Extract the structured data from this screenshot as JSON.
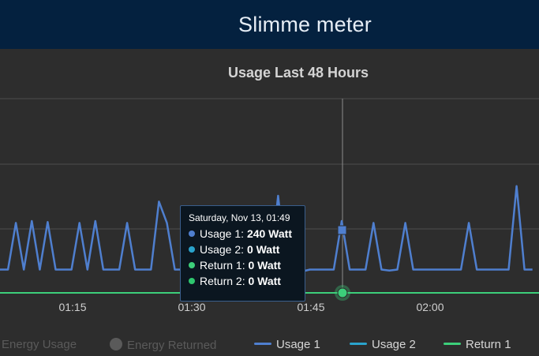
{
  "header": {
    "title": "Slimme meter"
  },
  "chart_data": {
    "type": "line",
    "title": "Usage Last 48 Hours",
    "x_ticks": [
      "01:15",
      "01:30",
      "01:45",
      "02:00"
    ],
    "y_unit": "Watt",
    "ylim": [
      0,
      1000
    ],
    "grid": true,
    "legend_position": "bottom",
    "series": [
      {
        "name": "Usage 1",
        "color": "#4f7fcf",
        "x_minutes": [
          0,
          1,
          2,
          3,
          4,
          5,
          6,
          7,
          8,
          9,
          10,
          11,
          12,
          13,
          14,
          15,
          16,
          17,
          18,
          19,
          20,
          21,
          22,
          23,
          24,
          25,
          26,
          27,
          28,
          29,
          30,
          31,
          32,
          33,
          34,
          35,
          36,
          37,
          38,
          39,
          40,
          41,
          42,
          43,
          44,
          45,
          46,
          47,
          48,
          49,
          50,
          51,
          52,
          53,
          54,
          55,
          56,
          57,
          58,
          59,
          60,
          61,
          62,
          63,
          64,
          65,
          66,
          67
        ],
        "values": [
          240,
          240,
          720,
          240,
          740,
          240,
          730,
          240,
          240,
          240,
          720,
          240,
          740,
          240,
          240,
          240,
          720,
          240,
          240,
          240,
          940,
          720,
          240,
          240,
          240,
          240,
          240,
          240,
          240,
          240,
          240,
          240,
          240,
          240,
          240,
          1000,
          240,
          240,
          220,
          240,
          240,
          240,
          240,
          740,
          240,
          240,
          240,
          720,
          240,
          230,
          240,
          720,
          240,
          240,
          240,
          240,
          240,
          240,
          240,
          720,
          240,
          240,
          240,
          240,
          240,
          1100,
          240,
          240
        ]
      },
      {
        "name": "Usage 2",
        "color": "#2aa3cc",
        "values": [
          0
        ]
      },
      {
        "name": "Return 1",
        "color": "#3ccf7a",
        "values": [
          0
        ]
      },
      {
        "name": "Return 2",
        "color": "#2ec76f",
        "values": [
          0
        ]
      }
    ]
  },
  "legend": [
    {
      "label": "Energy Usage",
      "visible": false
    },
    {
      "label": "Energy Returned",
      "visible": false
    },
    {
      "label": "Usage 1",
      "color": "#4f7fcf",
      "visible": true
    },
    {
      "label": "Usage 2",
      "color": "#2aa3cc",
      "visible": true
    },
    {
      "label": "Return 1",
      "color": "#3ccf7a",
      "visible": true
    }
  ],
  "tooltip": {
    "date": "Saturday, Nov 13, 01:49",
    "rows": [
      {
        "label": "Usage 1:",
        "value": "240 Watt",
        "color": "#4f7fcf"
      },
      {
        "label": "Usage 2:",
        "value": "0 Watt",
        "color": "#2aa3cc"
      },
      {
        "label": "Return 1:",
        "value": "0 Watt",
        "color": "#3ccf7a"
      },
      {
        "label": "Return 2:",
        "value": "0 Watt",
        "color": "#2ec76f"
      }
    ]
  }
}
